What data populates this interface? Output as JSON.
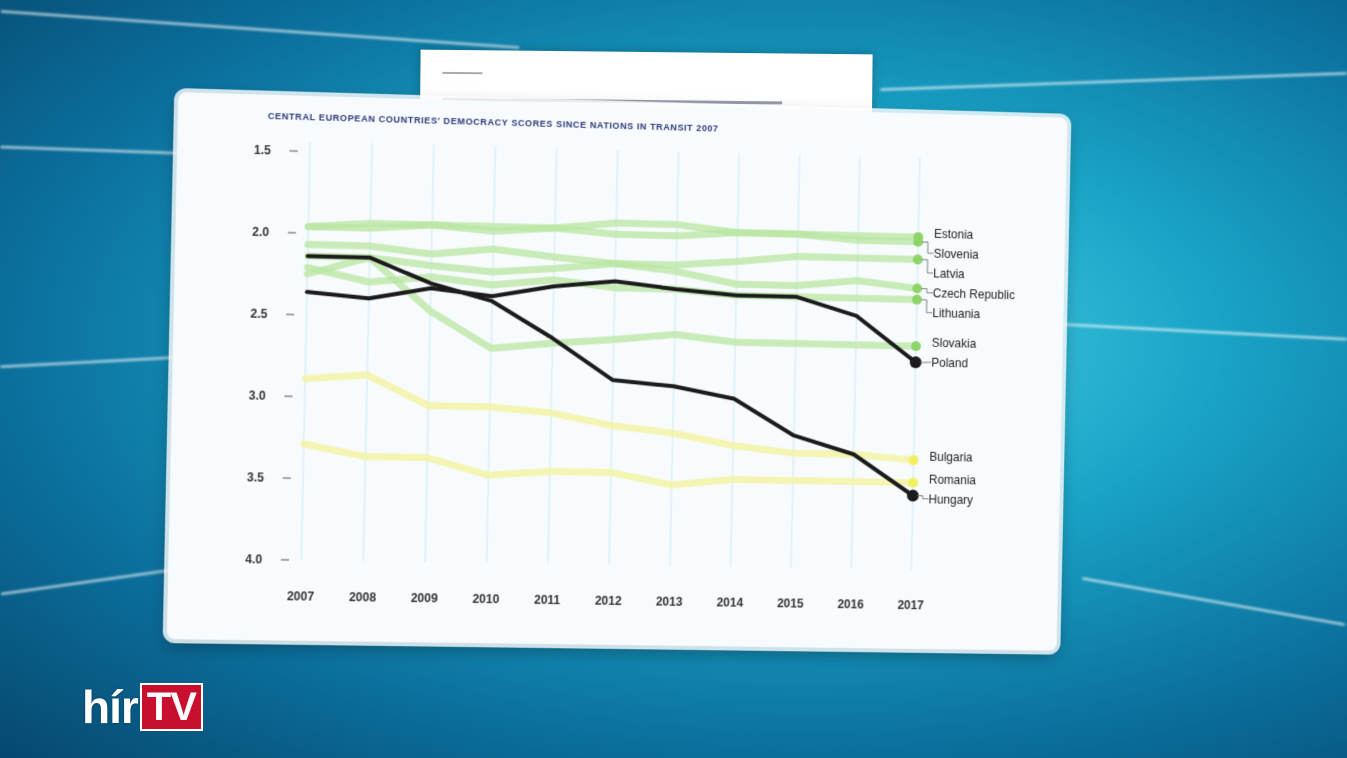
{
  "logo": {
    "part1": "hír",
    "part2": "TV"
  },
  "chart_data": {
    "type": "line",
    "title": "CENTRAL EUROPEAN COUNTRIES' DEMOCRACY SCORES SINCE NATIONS IN TRANSIT 2007",
    "x": [
      2007,
      2008,
      2009,
      2010,
      2011,
      2012,
      2013,
      2014,
      2015,
      2016,
      2017
    ],
    "x_tick_labels": [
      "2007",
      "2008",
      "2009",
      "2010",
      "2011",
      "2012",
      "2013",
      "2014",
      "2015",
      "2016",
      "2017"
    ],
    "y_tick_labels": [
      "1.5",
      "2.0",
      "2.5",
      "3.0",
      "3.5",
      "4.0"
    ],
    "ylim": [
      1.5,
      4.0
    ],
    "y_inverted": true,
    "grid": "vertical",
    "colors": {
      "highlight": "#1b1b1b",
      "group_eu_green": "#b8e6a0",
      "group_low": "#f3f39a",
      "dot_green": "#8fd46a",
      "dot_yellow": "#f0f060"
    },
    "series": [
      {
        "name": "Hungary",
        "group": "highlight",
        "values": [
          2.14,
          2.14,
          2.29,
          2.39,
          2.61,
          2.86,
          2.89,
          2.96,
          3.18,
          3.29,
          3.54
        ]
      },
      {
        "name": "Poland",
        "group": "highlight",
        "values": [
          2.36,
          2.39,
          2.32,
          2.36,
          2.29,
          2.25,
          2.29,
          2.32,
          2.32,
          2.43,
          2.71
        ]
      },
      {
        "name": "Estonia",
        "group": "green",
        "values": [
          1.96,
          1.96,
          1.93,
          1.93,
          1.93,
          1.96,
          1.96,
          1.93,
          1.93,
          1.93,
          1.93
        ]
      },
      {
        "name": "Slovenia",
        "group": "green",
        "values": [
          1.96,
          1.93,
          1.93,
          1.96,
          1.93,
          1.89,
          1.89,
          1.93,
          1.93,
          1.96,
          1.96
        ]
      },
      {
        "name": "Latvia",
        "group": "green",
        "values": [
          2.07,
          2.07,
          2.11,
          2.07,
          2.11,
          2.14,
          2.14,
          2.11,
          2.07,
          2.07,
          2.07
        ]
      },
      {
        "name": "Czech Republic",
        "group": "green",
        "values": [
          2.25,
          2.14,
          2.18,
          2.21,
          2.18,
          2.14,
          2.18,
          2.25,
          2.25,
          2.21,
          2.25
        ]
      },
      {
        "name": "Lithuania",
        "group": "green",
        "values": [
          2.21,
          2.29,
          2.25,
          2.29,
          2.25,
          2.29,
          2.29,
          2.32,
          2.32,
          2.32,
          2.32
        ]
      },
      {
        "name": "Slovakia",
        "group": "green",
        "values": [
          2.14,
          2.14,
          2.46,
          2.68,
          2.64,
          2.61,
          2.57,
          2.61,
          2.61,
          2.61,
          2.61
        ]
      },
      {
        "name": "Bulgaria",
        "group": "yellow",
        "values": [
          2.89,
          2.86,
          3.04,
          3.04,
          3.07,
          3.14,
          3.18,
          3.25,
          3.29,
          3.29,
          3.32
        ]
      },
      {
        "name": "Romania",
        "group": "yellow",
        "values": [
          3.29,
          3.36,
          3.36,
          3.46,
          3.43,
          3.43,
          3.5,
          3.46,
          3.46,
          3.46,
          3.46
        ]
      }
    ]
  }
}
